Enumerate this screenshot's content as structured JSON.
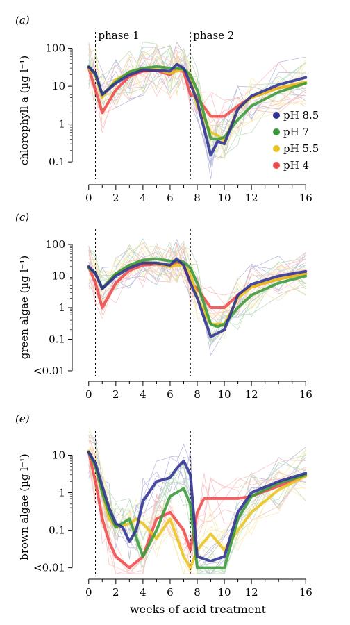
{
  "colors": {
    "pH 8.5": "#2e3192",
    "pH 7": "#3a9a3a",
    "pH 5.5": "#e8c41e",
    "pH 4": "#ee4b4b"
  },
  "x_axis_label": "weeks of acid treatment",
  "phase_labels": [
    "phase 1",
    "phase 2"
  ],
  "chart_data": [
    {
      "panel": "(a)",
      "type": "line",
      "ylabel": "chlorophyll a (µg l⁻¹)",
      "yscale": "log",
      "y_ticks": [
        "100",
        "10",
        "1",
        "0.1"
      ],
      "y_tick_values": [
        100,
        10,
        1,
        0.1
      ],
      "ylim": [
        0.035,
        150
      ],
      "x_ticks": [
        0,
        2,
        4,
        6,
        8,
        10,
        12,
        16
      ],
      "xlim": [
        -0.5,
        16.5
      ],
      "phase_lines_x": [
        0.5,
        7.5
      ],
      "phase_labels_shown": true,
      "legend_shown": true,
      "series": [
        {
          "name": "pH 8.5",
          "x": [
            0,
            0.5,
            1,
            2,
            3,
            4,
            5,
            6,
            6.5,
            7,
            7.5,
            8,
            9,
            9.5,
            10,
            11,
            12,
            14,
            16
          ],
          "y": [
            32,
            22,
            6,
            12,
            20,
            27,
            26,
            25,
            38,
            30,
            12,
            4,
            0.15,
            0.35,
            0.3,
            2.5,
            5.5,
            11,
            17
          ]
        },
        {
          "name": "pH 7",
          "x": [
            0,
            0.5,
            1,
            2,
            3,
            4,
            5,
            6,
            6.5,
            7,
            7.5,
            8,
            9,
            9.5,
            10,
            11,
            12,
            14,
            16
          ],
          "y": [
            33,
            20,
            6,
            13,
            24,
            30,
            33,
            30,
            30,
            28,
            20,
            8,
            0.42,
            0.4,
            0.45,
            1.3,
            3,
            7,
            12
          ]
        },
        {
          "name": "pH 5.5",
          "x": [
            0,
            0.5,
            1,
            2,
            3,
            4,
            5,
            6,
            6.5,
            7,
            7.5,
            8,
            9,
            9.5,
            10,
            11,
            12,
            14,
            16
          ],
          "y": [
            30,
            20,
            5,
            15,
            22,
            30,
            28,
            22,
            25,
            28,
            18,
            3,
            0.6,
            0.5,
            0.35,
            2.5,
            5,
            9,
            13
          ]
        },
        {
          "name": "pH 4",
          "x": [
            0,
            0.5,
            1,
            2,
            3,
            4,
            5,
            6,
            6.5,
            7,
            7.5,
            8,
            9,
            10,
            11,
            12,
            14,
            16
          ],
          "y": [
            30,
            8,
            2,
            8,
            18,
            25,
            26,
            20,
            28,
            24,
            6,
            5,
            1.6,
            1.6,
            3,
            5,
            9,
            12
          ]
        }
      ]
    },
    {
      "panel": "(c)",
      "type": "line",
      "ylabel": "green algae (µg l⁻¹)",
      "yscale": "log",
      "y_ticks": [
        "100",
        "10",
        "1",
        "0.1",
        "<0.01"
      ],
      "y_tick_values": [
        100,
        10,
        1,
        0.1,
        0.01
      ],
      "ylim": [
        0.007,
        150
      ],
      "x_ticks": [
        0,
        2,
        4,
        6,
        8,
        10,
        12,
        16
      ],
      "xlim": [
        -0.5,
        16.5
      ],
      "phase_lines_x": [
        0.5,
        7.5
      ],
      "phase_labels_shown": false,
      "legend_shown": false,
      "series": [
        {
          "name": "pH 8.5",
          "x": [
            0,
            0.5,
            1,
            2,
            3,
            4,
            5,
            6,
            6.5,
            7,
            7.5,
            8,
            9,
            10,
            11,
            12,
            14,
            16
          ],
          "y": [
            20,
            12,
            4,
            10,
            18,
            26,
            26,
            22,
            35,
            22,
            6,
            2,
            0.12,
            0.2,
            2.5,
            5.5,
            10,
            14
          ]
        },
        {
          "name": "pH 7",
          "x": [
            0,
            0.5,
            1,
            2,
            3,
            4,
            5,
            6,
            6.5,
            7,
            7.5,
            8,
            9,
            9.5,
            10,
            11,
            12,
            14,
            16
          ],
          "y": [
            18,
            12,
            4,
            12,
            22,
            32,
            35,
            30,
            30,
            28,
            18,
            6,
            0.3,
            0.25,
            0.3,
            1,
            2.5,
            6,
            10
          ]
        },
        {
          "name": "pH 5.5",
          "x": [
            0,
            0.5,
            1,
            2,
            3,
            4,
            5,
            6,
            6.5,
            7,
            7.5,
            8,
            9,
            10,
            11,
            12,
            14,
            16
          ],
          "y": [
            19,
            12,
            4,
            12,
            20,
            28,
            25,
            20,
            22,
            22,
            12,
            2,
            0.3,
            0.3,
            2,
            4.5,
            8,
            12
          ]
        },
        {
          "name": "pH 4",
          "x": [
            0,
            0.5,
            1,
            2,
            3,
            4,
            5,
            6,
            6.5,
            7,
            7.5,
            8,
            9,
            10,
            11,
            12,
            14,
            16
          ],
          "y": [
            19,
            6,
            1,
            6,
            15,
            22,
            24,
            20,
            28,
            24,
            6,
            4,
            1,
            1,
            2.5,
            4.5,
            8,
            12
          ]
        }
      ]
    },
    {
      "panel": "(e)",
      "type": "line",
      "ylabel": "brown algae (µg l⁻¹)",
      "yscale": "log",
      "y_ticks": [
        "10",
        "1",
        "0.1",
        "<0.01"
      ],
      "y_tick_values": [
        10,
        1,
        0.1,
        0.01
      ],
      "ylim": [
        0.007,
        25
      ],
      "x_ticks": [
        0,
        2,
        4,
        6,
        8,
        10,
        12,
        16
      ],
      "xlim": [
        -0.5,
        16.5
      ],
      "phase_lines_x": [
        0.5,
        7.5
      ],
      "phase_labels_shown": false,
      "legend_shown": false,
      "series": [
        {
          "name": "pH 8.5",
          "x": [
            0,
            0.5,
            1,
            1.5,
            2,
            2.5,
            3,
            3.5,
            4,
            5,
            6,
            6.5,
            7,
            7.5,
            8,
            9,
            10,
            11,
            12,
            14,
            16
          ],
          "y": [
            12,
            6,
            1.5,
            0.4,
            0.15,
            0.12,
            0.05,
            0.1,
            0.6,
            2,
            2.5,
            4.5,
            7,
            3,
            0.02,
            0.015,
            0.02,
            0.3,
            1,
            2,
            3.3
          ]
        },
        {
          "name": "pH 7",
          "x": [
            0,
            0.5,
            1,
            1.5,
            2,
            3,
            4,
            5,
            6,
            7,
            7.5,
            8,
            9,
            10,
            11,
            12,
            14,
            16
          ],
          "y": [
            12,
            5,
            1,
            0.3,
            0.12,
            0.2,
            0.02,
            0.1,
            0.8,
            1.3,
            0.5,
            0.01,
            0.01,
            0.01,
            0.2,
            0.8,
            1.8,
            3
          ]
        },
        {
          "name": "pH 5.5",
          "x": [
            0,
            0.5,
            1,
            1.5,
            2,
            3,
            3.5,
            4,
            5,
            6,
            7,
            7.5,
            8,
            9,
            10,
            11,
            12,
            14,
            16
          ],
          "y": [
            13,
            5,
            1,
            0.2,
            0.12,
            0.15,
            0.2,
            0.15,
            0.06,
            0.2,
            0.02,
            0.01,
            0.03,
            0.08,
            0.03,
            0.1,
            0.3,
            1.2,
            2.8
          ]
        },
        {
          "name": "pH 4",
          "x": [
            0,
            0.5,
            1,
            1.5,
            2,
            3,
            4,
            5,
            6,
            7,
            7.5,
            8,
            8.5,
            9,
            10,
            11,
            12,
            14,
            16
          ],
          "y": [
            12,
            2,
            0.2,
            0.05,
            0.02,
            0.01,
            0.02,
            0.2,
            0.3,
            0.1,
            0.03,
            0.3,
            0.7,
            0.7,
            0.7,
            0.7,
            0.8,
            1.5,
            2.8
          ]
        }
      ]
    }
  ]
}
